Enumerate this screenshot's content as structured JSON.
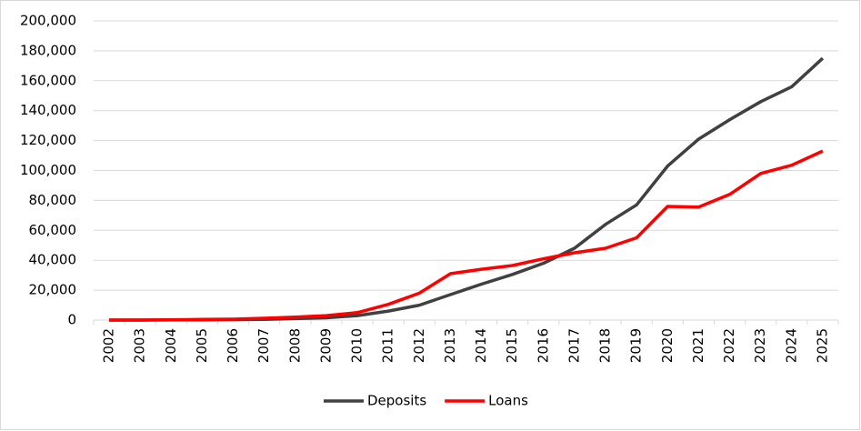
{
  "chart_data": {
    "type": "line",
    "categories": [
      "2002",
      "2003",
      "2004",
      "2005",
      "2006",
      "2007",
      "2008",
      "2009",
      "2010",
      "2011",
      "2012",
      "2013",
      "2014",
      "2015",
      "2016",
      "2017",
      "2018",
      "2019",
      "2020",
      "2021",
      "2022",
      "2023",
      "2024",
      "2025"
    ],
    "series": [
      {
        "name": "Deposits",
        "color": "#404040",
        "values": [
          0,
          0,
          100,
          200,
          300,
          500,
          1000,
          1500,
          3000,
          6000,
          10000,
          17000,
          24000,
          30500,
          38000,
          48000,
          64000,
          77000,
          103000,
          121000,
          134000,
          146000,
          156000,
          175000
        ]
      },
      {
        "name": "Loans",
        "color": "#ff0000",
        "values": [
          0,
          0,
          200,
          400,
          600,
          1200,
          2000,
          3000,
          5000,
          10500,
          18000,
          31000,
          34000,
          36500,
          41000,
          45000,
          48000,
          55000,
          76000,
          75500,
          84000,
          98000,
          103500,
          113000
        ]
      }
    ],
    "ylim": [
      0,
      200000
    ],
    "yticks": [
      0,
      {
        "value": 20000,
        "label": "20,000"
      },
      {
        "value": 40000,
        "label": "40,000"
      },
      {
        "value": 60000,
        "label": "60,000"
      },
      {
        "value": 80000,
        "label": "80,000"
      },
      {
        "value": 100000,
        "label": "100,000"
      },
      {
        "value": 120000,
        "label": "120,000"
      },
      {
        "value": 140000,
        "label": "140,000"
      },
      {
        "value": 160000,
        "label": "160,000"
      },
      {
        "value": 180000,
        "label": "180,000"
      },
      {
        "value": 200000,
        "label": "200,000"
      }
    ],
    "grid": true,
    "legend": "bottom"
  }
}
